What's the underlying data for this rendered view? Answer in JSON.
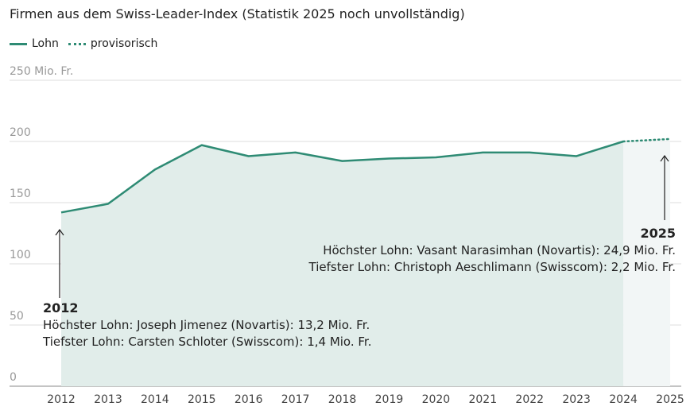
{
  "chart_data": {
    "type": "line",
    "title": "Firmen aus dem Swiss-Leader-Index (Statistik 2025 noch unvollständig)",
    "legend": [
      {
        "label": "Lohn",
        "style": "solid"
      },
      {
        "label": "provisorisch",
        "style": "dotted"
      }
    ],
    "y_unit_label": "250 Mio. Fr.",
    "yticks": [
      "0",
      "50",
      "100",
      "150",
      "200",
      "250 Mio. Fr."
    ],
    "ytick_values": [
      0,
      50,
      100,
      150,
      200,
      250
    ],
    "ylim": [
      0,
      250
    ],
    "grid": true,
    "x": [
      2012,
      2013,
      2014,
      2015,
      2016,
      2017,
      2018,
      2019,
      2020,
      2021,
      2022,
      2023,
      2024,
      2025
    ],
    "series": [
      {
        "name": "Lohn",
        "values": [
          142,
          149,
          177,
          197,
          188,
          191,
          184,
          186,
          187,
          191,
          191,
          188,
          200,
          202
        ]
      }
    ],
    "provisional_from": 2024,
    "color": "#2e8b74",
    "area_color": "#e1edea",
    "annotations": [
      {
        "year": "2012",
        "line1": "Höchster Lohn: Joseph Jimenez (Novartis): 13,2 Mio. Fr.",
        "line2": "Tiefster Lohn: Carsten Schloter (Swisscom): 1,4 Mio. Fr."
      },
      {
        "year": "2025",
        "line1": "Höchster Lohn: Vasant Narasimhan (Novartis): 24,9 Mio. Fr.",
        "line2": "Tiefster Lohn: Christoph Aeschlimann (Swisscom): 2,2 Mio. Fr."
      }
    ]
  }
}
